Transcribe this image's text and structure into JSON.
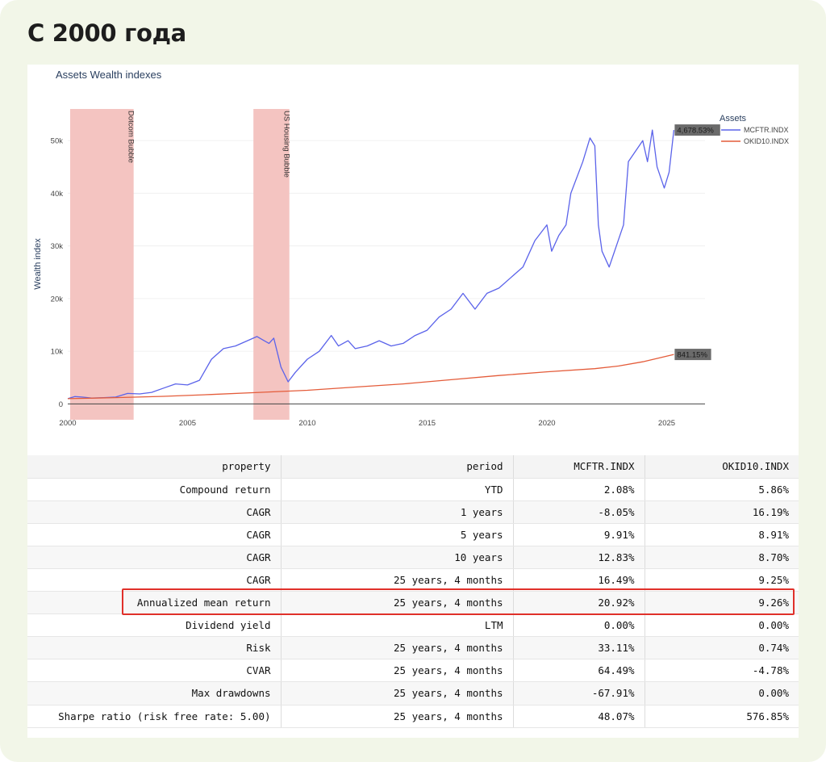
{
  "heading": "С 2000 года",
  "chart_data": {
    "type": "line",
    "title": "Assets Wealth indexes",
    "xlabel": "",
    "ylabel": "Wealth index",
    "xlim": [
      2000,
      2026.6
    ],
    "ylim": [
      -3000,
      56000
    ],
    "xticks": [
      2000,
      2005,
      2010,
      2015,
      2020,
      2025
    ],
    "yticks": [
      0,
      10000,
      20000,
      30000,
      40000,
      50000
    ],
    "ytick_labels": [
      "0",
      "10k",
      "20k",
      "30k",
      "40k",
      "50k"
    ],
    "legend_title": "Assets",
    "legend_position": "top-right",
    "shaded_regions": [
      {
        "label": "Dotcom Bubble",
        "x0": 2000.1,
        "x1": 2002.75,
        "color": "#f3c1be"
      },
      {
        "label": "US Housing Bubble",
        "x0": 2007.75,
        "x1": 2009.25,
        "color": "#f3c1be"
      }
    ],
    "series": [
      {
        "name": "MCFTR.INDX",
        "color": "#5b63ea",
        "end_label": "4,678.53%",
        "x": [
          2000,
          2000.3,
          2000.6,
          2001,
          2001.5,
          2002,
          2002.5,
          2003,
          2003.5,
          2004,
          2004.5,
          2005,
          2005.5,
          2006,
          2006.5,
          2007,
          2007.5,
          2007.9,
          2008.2,
          2008.4,
          2008.6,
          2008.9,
          2009.2,
          2009.5,
          2010,
          2010.5,
          2011,
          2011.3,
          2011.7,
          2012,
          2012.5,
          2013,
          2013.5,
          2014,
          2014.5,
          2015,
          2015.5,
          2016,
          2016.5,
          2017,
          2017.5,
          2018,
          2018.5,
          2019,
          2019.5,
          2020,
          2020.2,
          2020.5,
          2020.8,
          2021,
          2021.5,
          2021.8,
          2022,
          2022.15,
          2022.3,
          2022.6,
          2022.9,
          2023.2,
          2023.4,
          2023.7,
          2024,
          2024.2,
          2024.4,
          2024.6,
          2024.9,
          2025.1,
          2025.3
        ],
        "y": [
          1000,
          1400,
          1300,
          1100,
          1200,
          1300,
          2000,
          1900,
          2200,
          3000,
          3800,
          3600,
          4500,
          8500,
          10500,
          11000,
          12000,
          12800,
          12000,
          11500,
          12500,
          7000,
          4200,
          6000,
          8500,
          10000,
          13000,
          11000,
          12000,
          10500,
          11000,
          12000,
          11000,
          11500,
          13000,
          14000,
          16500,
          18000,
          21000,
          18000,
          21000,
          22000,
          24000,
          26000,
          31000,
          34000,
          29000,
          32000,
          34000,
          40000,
          46000,
          50500,
          49000,
          34000,
          29000,
          26000,
          30000,
          34000,
          46000,
          48000,
          50000,
          46000,
          52000,
          45000,
          41000,
          44000,
          52000
        ]
      },
      {
        "name": "OKID10.INDX",
        "color": "#e45c3a",
        "end_label": "841.15%",
        "x": [
          2000,
          2002,
          2004,
          2006,
          2008,
          2010,
          2012,
          2014,
          2016,
          2018,
          2020,
          2022,
          2023,
          2024,
          2025.3
        ],
        "y": [
          1000,
          1200,
          1450,
          1800,
          2200,
          2600,
          3200,
          3800,
          4600,
          5400,
          6100,
          6700,
          7200,
          8000,
          9400
        ]
      }
    ]
  },
  "table": {
    "headers": [
      "property",
      "period",
      "MCFTR.INDX",
      "OKID10.INDX"
    ],
    "rows": [
      [
        "Compound return",
        "YTD",
        "2.08%",
        "5.86%"
      ],
      [
        "CAGR",
        "1 years",
        "-8.05%",
        "16.19%"
      ],
      [
        "CAGR",
        "5 years",
        "9.91%",
        "8.91%"
      ],
      [
        "CAGR",
        "10 years",
        "12.83%",
        "8.70%"
      ],
      [
        "CAGR",
        "25 years, 4 months",
        "16.49%",
        "9.25%"
      ],
      [
        "Annualized mean return",
        "25 years, 4 months",
        "20.92%",
        "9.26%"
      ],
      [
        "Dividend yield",
        "LTM",
        "0.00%",
        "0.00%"
      ],
      [
        "Risk",
        "25 years, 4 months",
        "33.11%",
        "0.74%"
      ],
      [
        "CVAR",
        "25 years, 4 months",
        "64.49%",
        "-4.78%"
      ],
      [
        "Max drawdowns",
        "25 years, 4 months",
        "-67.91%",
        "0.00%"
      ],
      [
        "Sharpe ratio (risk free rate: 5.00)",
        "25 years, 4 months",
        "48.07%",
        "576.85%"
      ]
    ]
  }
}
